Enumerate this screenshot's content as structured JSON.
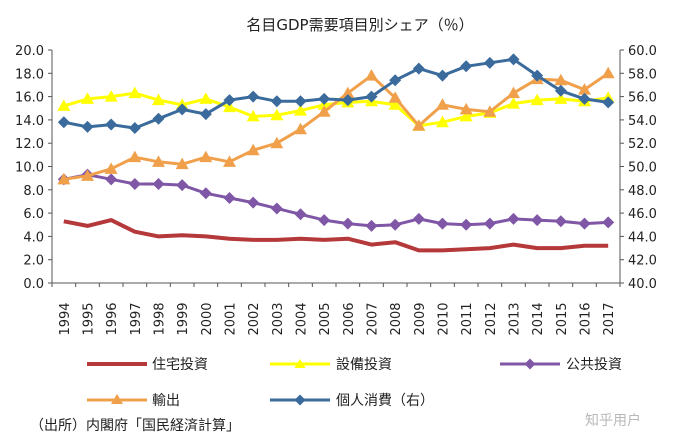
{
  "chart_data": {
    "type": "line",
    "title": "名目GDP需要項目別シェア（％）",
    "x": [
      "1994",
      "1995",
      "1996",
      "1997",
      "1998",
      "1999",
      "2000",
      "2001",
      "2002",
      "2003",
      "2004",
      "2005",
      "2006",
      "2007",
      "2008",
      "2009",
      "2010",
      "2011",
      "2012",
      "2013",
      "2014",
      "2015",
      "2016",
      "2017"
    ],
    "y_left_range": [
      0,
      20
    ],
    "y_left_ticks": [
      "0.0",
      "2.0",
      "4.0",
      "6.0",
      "8.0",
      "10.0",
      "12.0",
      "14.0",
      "16.0",
      "18.0",
      "20.0"
    ],
    "y_right_range": [
      40,
      60
    ],
    "y_right_ticks": [
      "40.0",
      "42.0",
      "44.0",
      "46.0",
      "48.0",
      "50.0",
      "52.0",
      "54.0",
      "56.0",
      "58.0",
      "60.0"
    ],
    "grid": false,
    "legend_position": "bottom",
    "series": [
      {
        "name": "住宅投資",
        "axis": "left",
        "color": "#b5393a",
        "marker": "none",
        "values": [
          5.3,
          4.9,
          5.4,
          4.4,
          4.0,
          4.1,
          4.0,
          3.8,
          3.7,
          3.7,
          3.8,
          3.7,
          3.8,
          3.3,
          3.5,
          2.8,
          2.8,
          2.9,
          3.0,
          3.3,
          3.0,
          3.0,
          3.2,
          3.2
        ]
      },
      {
        "name": "設備投資",
        "axis": "left",
        "color": "#ffff00",
        "marker": "triangle",
        "values": [
          15.2,
          15.8,
          16.0,
          16.3,
          15.7,
          15.3,
          15.8,
          15.1,
          14.3,
          14.4,
          14.8,
          15.3,
          15.5,
          15.6,
          15.3,
          13.5,
          13.8,
          14.3,
          14.6,
          15.4,
          15.7,
          15.8,
          15.6,
          15.9
        ]
      },
      {
        "name": "公共投資",
        "axis": "left",
        "color": "#7f57a6",
        "marker": "diamond",
        "values": [
          8.9,
          9.3,
          8.9,
          8.5,
          8.5,
          8.4,
          7.7,
          7.3,
          6.9,
          6.4,
          5.9,
          5.4,
          5.1,
          4.9,
          5.0,
          5.5,
          5.1,
          5.0,
          5.1,
          5.5,
          5.4,
          5.3,
          5.1,
          5.2
        ]
      },
      {
        "name": "輸出",
        "axis": "left",
        "color": "#f0a04b",
        "marker": "triangle",
        "values": [
          8.9,
          9.2,
          9.8,
          10.8,
          10.4,
          10.2,
          10.8,
          10.4,
          11.4,
          12.0,
          13.2,
          14.7,
          16.3,
          17.8,
          15.9,
          13.5,
          15.3,
          14.9,
          14.7,
          16.3,
          17.5,
          17.4,
          16.6,
          18.0
        ]
      },
      {
        "name": "個人消費（右）",
        "axis": "right",
        "color": "#3a6b9c",
        "marker": "diamond",
        "values": [
          53.8,
          53.4,
          53.6,
          53.3,
          54.1,
          54.9,
          54.5,
          55.7,
          56.0,
          55.6,
          55.6,
          55.8,
          55.7,
          56.0,
          57.4,
          58.4,
          57.8,
          58.6,
          58.9,
          59.2,
          57.8,
          56.5,
          55.8,
          55.5
        ]
      }
    ]
  },
  "source_note": "（出所）内閣府「国民経済計算」",
  "watermark": "知乎用户"
}
